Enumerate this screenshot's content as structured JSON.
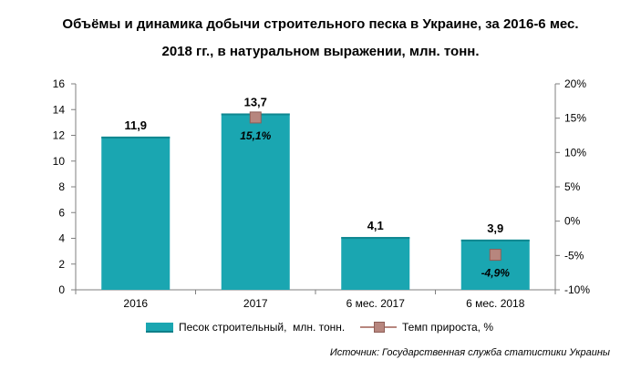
{
  "title_line1": "Объёмы и динамика добычи строительного песка в Украине, за 2016-6 мес.",
  "title_line2": "2018 гг., в натуральном выражении, млн. тонн.",
  "source": "Источник: Государственная служба статистики Украины",
  "chart_data": {
    "type": "bar",
    "categories": [
      "2016",
      "2017",
      "6 мес. 2017",
      "6 мес. 2018"
    ],
    "series": [
      {
        "name": "Песок строительный,  млн. тонн.",
        "type": "bar",
        "axis": "left",
        "color": "#1aa6b1",
        "values": [
          11.9,
          13.7,
          4.1,
          3.9
        ],
        "labels": [
          "11,9",
          "13,7",
          "4,1",
          "3,9"
        ]
      },
      {
        "name": "Темп прироста, %",
        "type": "marker",
        "axis": "right",
        "color": "#b7867e",
        "values": [
          null,
          15.1,
          null,
          -4.9
        ],
        "labels": [
          "",
          "15,1%",
          "",
          "-4,9%"
        ]
      }
    ],
    "y_left": {
      "min": 0,
      "max": 16,
      "step": 2,
      "ticks": [
        "0",
        "2",
        "4",
        "6",
        "8",
        "10",
        "12",
        "14",
        "16"
      ]
    },
    "y_right": {
      "min": -10,
      "max": 20,
      "step": 5,
      "ticks": [
        "-10%",
        "-5%",
        "0%",
        "5%",
        "10%",
        "15%",
        "20%"
      ]
    },
    "legend_position": "bottom",
    "grid": false
  }
}
